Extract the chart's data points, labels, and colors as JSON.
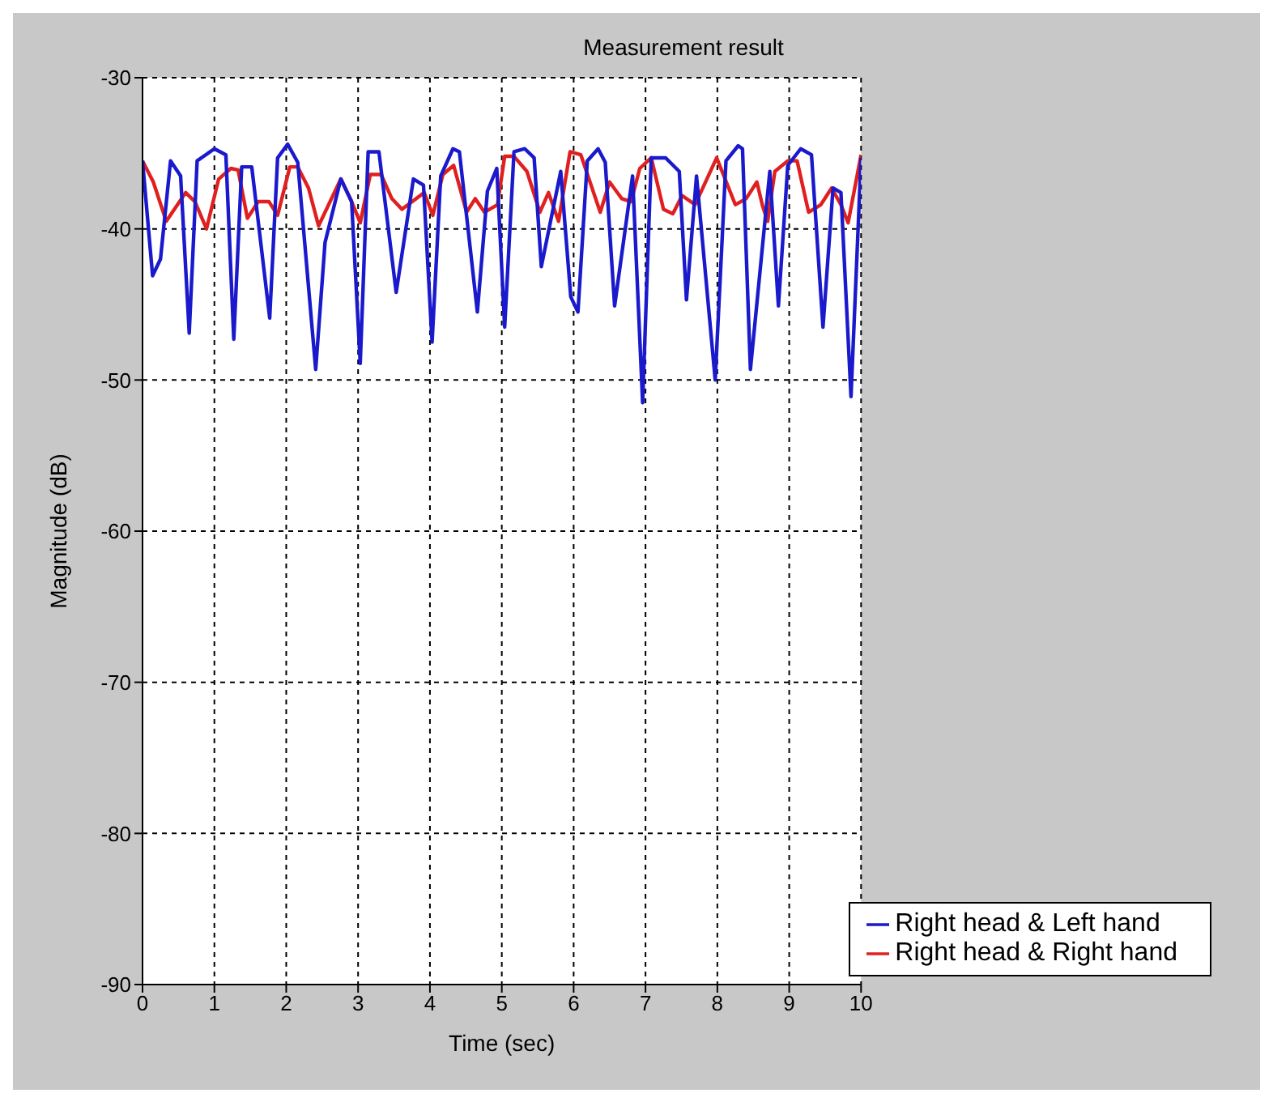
{
  "chart_data": {
    "type": "line",
    "title": "Measurement result",
    "xlabel": "Time (sec)",
    "ylabel": "Magnitude (dB)",
    "xlim": [
      0,
      10
    ],
    "xticks": [
      0,
      1,
      2,
      3,
      4,
      5,
      6,
      7,
      8,
      9,
      10
    ],
    "ylim": [
      -90,
      -30
    ],
    "yticks": [
      -90,
      -80,
      -70,
      -60,
      -50,
      -40,
      -30
    ],
    "grid": true,
    "legend": "bottom right",
    "line_style": "solid",
    "series": [
      {
        "name": "Right head & Right hand",
        "color": "#e02020",
        "x": [
          0,
          0.15,
          0.33,
          0.6,
          0.73,
          0.89,
          1.06,
          1.23,
          1.33,
          1.46,
          1.61,
          1.76,
          1.88,
          2.05,
          2.16,
          2.31,
          2.45,
          2.76,
          2.91,
          3.03,
          3.17,
          3.32,
          3.47,
          3.61,
          3.92,
          4.04,
          4.18,
          4.33,
          4.51,
          4.63,
          4.76,
          4.94,
          5.04,
          5.17,
          5.35,
          5.53,
          5.65,
          5.79,
          5.95,
          6.1,
          6.37,
          6.5,
          6.67,
          6.8,
          6.92,
          7.08,
          7.25,
          7.38,
          7.51,
          7.69,
          7.99,
          8.25,
          8.4,
          8.55,
          8.63,
          8.7,
          8.8,
          8.98,
          9.11,
          9.27,
          9.44,
          9.59,
          9.72,
          9.82,
          10
        ],
        "values": [
          -35.5,
          -36.9,
          -39.5,
          -37.6,
          -38.2,
          -40,
          -36.7,
          -36,
          -36.1,
          -39.3,
          -38.2,
          -38.2,
          -39.1,
          -35.9,
          -35.9,
          -37.3,
          -39.8,
          -36.7,
          -38.2,
          -39.6,
          -36.4,
          -36.4,
          -38,
          -38.7,
          -37.6,
          -39.1,
          -36.4,
          -35.8,
          -38.9,
          -38,
          -38.9,
          -38.4,
          -35.2,
          -35.2,
          -36.2,
          -38.9,
          -37.6,
          -39.5,
          -34.9,
          -35.1,
          -38.9,
          -36.9,
          -38,
          -38.2,
          -36,
          -35.3,
          -38.7,
          -39,
          -37.8,
          -38.4,
          -35.3,
          -38.4,
          -38,
          -36.9,
          -38.5,
          -39.5,
          -36.2,
          -35.5,
          -35.5,
          -38.9,
          -38.4,
          -37.3,
          -38.4,
          -39.6,
          -35.1
        ]
      },
      {
        "name": "Right head & Left hand",
        "color": "#1a1acc",
        "x": [
          0,
          0.14,
          0.25,
          0.39,
          0.53,
          0.65,
          0.76,
          1.0,
          1.16,
          1.27,
          1.38,
          1.52,
          1.77,
          1.88,
          2.02,
          2.16,
          2.41,
          2.54,
          2.76,
          2.91,
          3.03,
          3.14,
          3.29,
          3.53,
          3.77,
          3.91,
          4.03,
          4.15,
          4.32,
          4.41,
          4.66,
          4.8,
          4.93,
          5.04,
          5.17,
          5.32,
          5.45,
          5.55,
          5.82,
          5.96,
          6.06,
          6.19,
          6.34,
          6.44,
          6.57,
          6.82,
          6.96,
          7.08,
          7.28,
          7.47,
          7.57,
          7.71,
          7.97,
          8.12,
          8.29,
          8.35,
          8.46,
          8.73,
          8.85,
          8.98,
          9.16,
          9.31,
          9.47,
          9.61,
          9.72,
          9.86,
          10
        ],
        "values": [
          -35.5,
          -43.1,
          -42,
          -35.5,
          -36.5,
          -46.9,
          -35.5,
          -34.7,
          -35.1,
          -47.3,
          -35.9,
          -35.9,
          -45.9,
          -35.3,
          -34.4,
          -35.6,
          -49.3,
          -40.9,
          -36.7,
          -38.2,
          -48.9,
          -34.9,
          -34.9,
          -44.2,
          -36.7,
          -37.1,
          -47.5,
          -36.5,
          -34.7,
          -34.9,
          -45.5,
          -37.5,
          -36,
          -46.5,
          -34.9,
          -34.7,
          -35.3,
          -42.5,
          -36.2,
          -44.5,
          -45.5,
          -35.5,
          -34.7,
          -35.6,
          -45.1,
          -36.5,
          -51.5,
          -35.3,
          -35.3,
          -36.2,
          -44.7,
          -36.5,
          -50,
          -35.5,
          -34.5,
          -34.7,
          -49.3,
          -36.2,
          -45.1,
          -35.8,
          -34.7,
          -35.1,
          -46.5,
          -37.3,
          -37.6,
          -51.1,
          -35.3
        ]
      }
    ]
  }
}
